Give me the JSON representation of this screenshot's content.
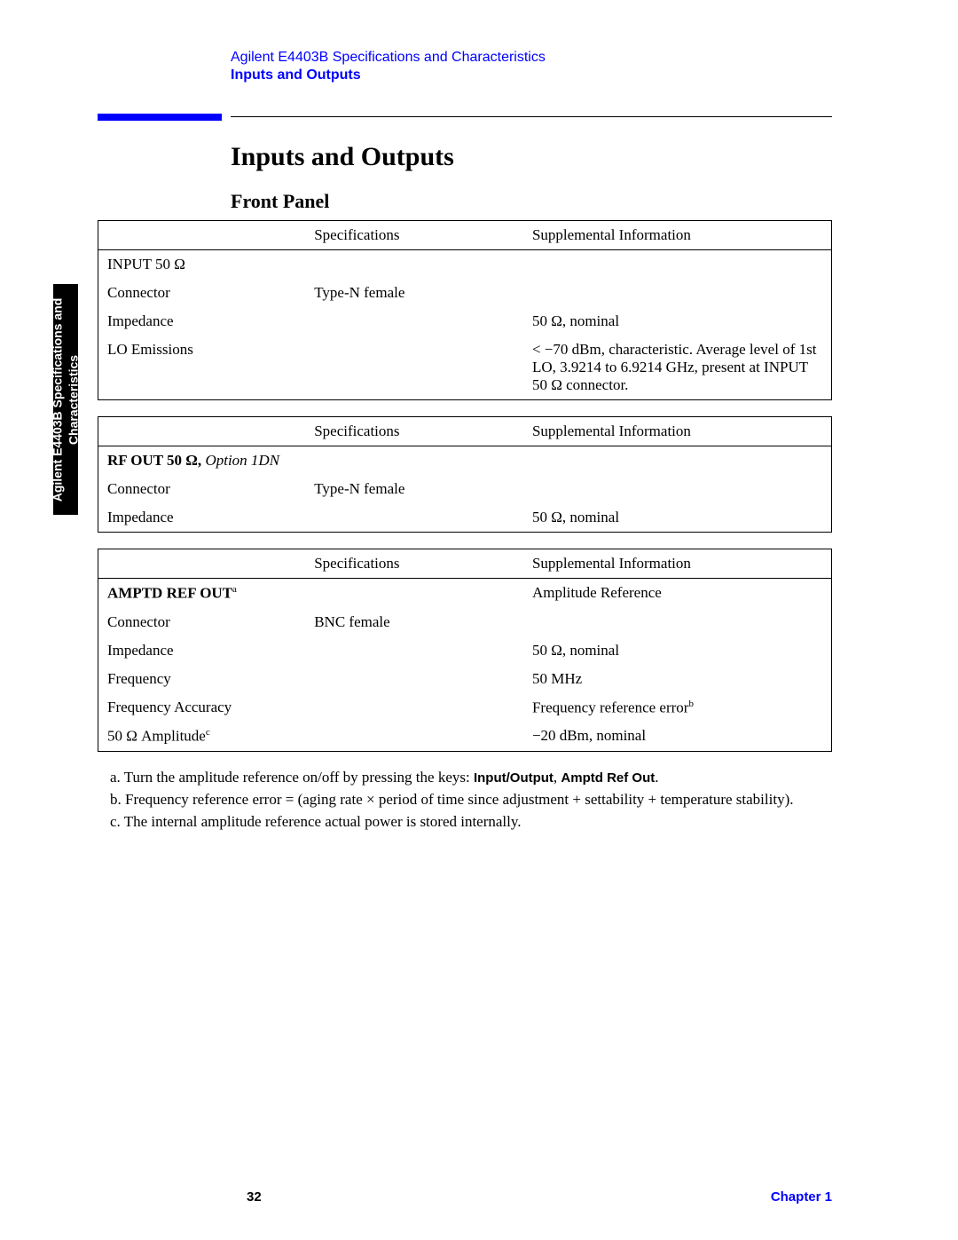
{
  "sideTab": {
    "line1": "Agilent E4403B Specifications and",
    "line2": "Characteristics"
  },
  "header": {
    "doc": "Agilent E4403B Specifications and Characteristics",
    "section": "Inputs and Outputs"
  },
  "title": "Inputs and Outputs",
  "subsection": "Front Panel",
  "columns": {
    "c2": "Specifications",
    "c3": "Supplemental Information"
  },
  "table1": {
    "head": "INPUT 50 Ω",
    "rows": [
      {
        "label": "Connector",
        "spec": "Type-N female",
        "supp": ""
      },
      {
        "label": "Impedance",
        "spec": "",
        "supp": "50 Ω, nominal"
      },
      {
        "label": "LO Emissions",
        "spec": "",
        "supp": "< −70 dBm, characteristic. Average level of 1st LO, 3.9214 to 6.9214 GHz, present at INPUT 50 Ω connector."
      }
    ]
  },
  "table2": {
    "head_bold": "RF OUT 50 Ω,",
    "head_ital": " Option 1DN",
    "rows": [
      {
        "label": "Connector",
        "spec": "Type-N female",
        "supp": ""
      },
      {
        "label": "Impedance",
        "spec": "",
        "supp": "50 Ω, nominal"
      }
    ]
  },
  "table3": {
    "head": "AMPTD REF OUT",
    "head_sup": "a",
    "head_supp": "Amplitude Reference",
    "rows": [
      {
        "label": "Connector",
        "spec": "BNC female",
        "supp": ""
      },
      {
        "label": "Impedance",
        "spec": "",
        "supp": "50 Ω, nominal"
      },
      {
        "label": "Frequency",
        "spec": "",
        "supp": "50 MHz"
      },
      {
        "label": "Frequency Accuracy",
        "spec": "",
        "supp_pre": "Frequency reference error",
        "supp_sup": "b"
      },
      {
        "label_pre": "50 Ω Amplitude",
        "label_sup": "c",
        "spec": "",
        "supp": "−20 dBm, nominal"
      }
    ]
  },
  "footnotes": {
    "a_pre": "a. Turn the amplitude reference on/off by pressing the keys: ",
    "a_k1": "Input/Output",
    "a_mid": ", ",
    "a_k2": "Amptd Ref Out",
    "a_post": ".",
    "b": "b. Frequency reference error = (aging rate × period of time since adjustment + settability + temperature stability).",
    "c": "c. The internal amplitude reference actual power is stored internally."
  },
  "footer": {
    "page": "32",
    "chapter": "Chapter 1"
  }
}
